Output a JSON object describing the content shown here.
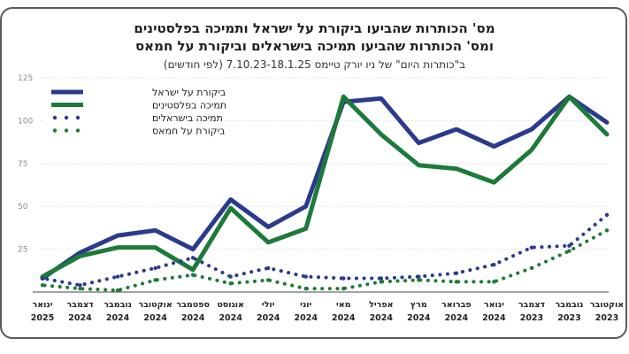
{
  "chart_data": {
    "type": "line",
    "title": "מס' הכותרות שהביעו ביקורת על ישראל ותמיכה בפלסטינים",
    "subtitle": "ומס' הכותרות שהביעו תמיכה בישראלים וביקורת על חמאס",
    "note": "ב\"כותרות היום\" של ניו יורק טיימס 7.10.23-18.1.25 (לפי חודשים)",
    "yticks": [
      25,
      50,
      75,
      100,
      125
    ],
    "ylim": [
      0,
      125
    ],
    "categories": [
      {
        "month": "אוקטובר",
        "year": "2023"
      },
      {
        "month": "נובמבר",
        "year": "2023"
      },
      {
        "month": "דצמבר",
        "year": "2023"
      },
      {
        "month": "ינואר",
        "year": "2024"
      },
      {
        "month": "פברואר",
        "year": "2024"
      },
      {
        "month": "מרץ",
        "year": "2024"
      },
      {
        "month": "אפריל",
        "year": "2024"
      },
      {
        "month": "מאי",
        "year": "2024"
      },
      {
        "month": "יוני",
        "year": "2024"
      },
      {
        "month": "יולי",
        "year": "2024"
      },
      {
        "month": "אוגוסט",
        "year": "2024"
      },
      {
        "month": "ספטמבר",
        "year": "2024"
      },
      {
        "month": "אוקטובר",
        "year": "2024"
      },
      {
        "month": "נובמבר",
        "year": "2024"
      },
      {
        "month": "דצמבר",
        "year": "2024"
      },
      {
        "month": "ינואר",
        "year": "2025"
      }
    ],
    "series": [
      {
        "name": "ביקורת על ישראל",
        "style": "solid",
        "color": "#2b3a8c",
        "values": [
          99,
          114,
          95,
          85,
          95,
          87,
          113,
          111,
          50,
          38,
          54,
          25,
          36,
          33,
          23,
          8
        ]
      },
      {
        "name": "תמיכה בפלסטינים",
        "style": "solid",
        "color": "#1d7a3a",
        "values": [
          92,
          114,
          83,
          64,
          72,
          74,
          92,
          114,
          37,
          29,
          49,
          13,
          26,
          26,
          21,
          9
        ]
      },
      {
        "name": "תמיכה בישראלים",
        "style": "dotted",
        "color": "#2b3a8c",
        "values": [
          45,
          27,
          26,
          16,
          11,
          9,
          8,
          8,
          9,
          14,
          9,
          20,
          14,
          9,
          4,
          8
        ]
      },
      {
        "name": "ביקורת על חמאס",
        "style": "dotted",
        "color": "#1d7a3a",
        "values": [
          36,
          24,
          14,
          6,
          6,
          7,
          6,
          2,
          2,
          7,
          5,
          10,
          7,
          1,
          2,
          4
        ]
      }
    ],
    "xlabel": "",
    "ylabel": "",
    "grid": true,
    "legend_position": "top-left"
  }
}
